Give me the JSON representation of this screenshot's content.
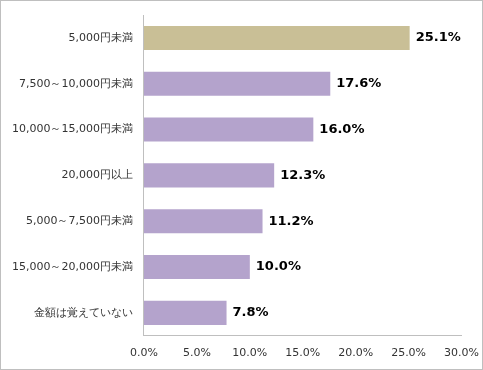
{
  "chart_data": {
    "type": "bar",
    "orientation": "horizontal",
    "categories": [
      "5,000円未満",
      "7,500～10,000円未満",
      "10,000～15,000円未満",
      "20,000円以上",
      "5,000～7,500円未満",
      "15,000～20,000円未満",
      "金額は覚えていない"
    ],
    "values": [
      25.1,
      17.6,
      16.0,
      12.3,
      11.2,
      10.0,
      7.8
    ],
    "value_labels": [
      "25.1%",
      "17.6%",
      "16.0%",
      "12.3%",
      "11.2%",
      "10.0%",
      "7.8%"
    ],
    "colors": [
      "#c9bf96",
      "#b4a3cc",
      "#b4a3cc",
      "#b4a3cc",
      "#b4a3cc",
      "#b4a3cc",
      "#b4a3cc"
    ],
    "xlim": [
      0,
      30
    ],
    "xticks": [
      {
        "value": 0,
        "label": "0.0%"
      },
      {
        "value": 5,
        "label": "5.0%"
      },
      {
        "value": 10,
        "label": "10.0%"
      },
      {
        "value": 15,
        "label": "15.0%"
      },
      {
        "value": 20,
        "label": "20.0%"
      },
      {
        "value": 25,
        "label": "25.0%"
      },
      {
        "value": 30,
        "label": "30.0%"
      }
    ],
    "data_labels": true,
    "grid": false
  }
}
